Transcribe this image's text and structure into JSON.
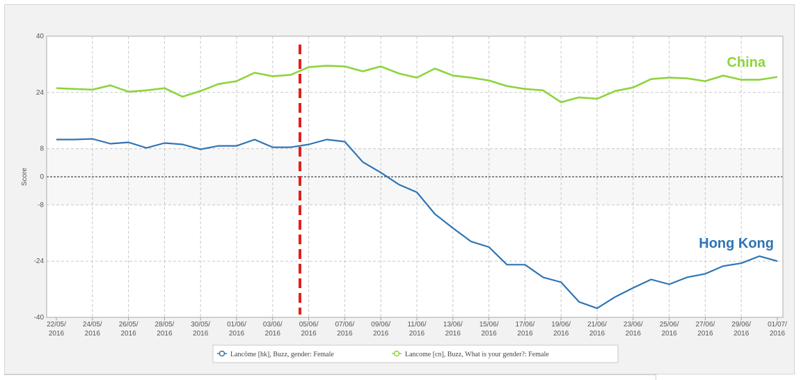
{
  "chart_data": {
    "type": "line",
    "ylabel": "Score",
    "xlabel": "",
    "ylim": [
      -40,
      40
    ],
    "yticks": [
      40,
      24,
      8,
      0,
      -8,
      -24,
      -40
    ],
    "grid": true,
    "legend_position": "bottom-center",
    "x": [
      "22/05/2016",
      "23/05/2016",
      "24/05/2016",
      "25/05/2016",
      "26/05/2016",
      "27/05/2016",
      "28/05/2016",
      "29/05/2016",
      "30/05/2016",
      "31/05/2016",
      "01/06/2016",
      "02/06/2016",
      "03/06/2016",
      "04/06/2016",
      "05/06/2016",
      "06/06/2016",
      "07/06/2016",
      "08/06/2016",
      "09/06/2016",
      "10/06/2016",
      "11/06/2016",
      "12/06/2016",
      "13/06/2016",
      "14/06/2016",
      "15/06/2016",
      "16/06/2016",
      "17/06/2016",
      "18/06/2016",
      "19/06/2016",
      "20/06/2016",
      "21/06/2016",
      "22/06/2016",
      "23/06/2016",
      "24/06/2016",
      "25/06/2016",
      "26/06/2016",
      "27/06/2016",
      "28/06/2016",
      "29/06/2016",
      "30/06/2016",
      "01/07/2016"
    ],
    "xtick_labels": [
      {
        "line1": "22/05/",
        "line2": "2016"
      },
      {
        "line1": "24/05/",
        "line2": "2016"
      },
      {
        "line1": "26/05/",
        "line2": "2016"
      },
      {
        "line1": "28/05/",
        "line2": "2016"
      },
      {
        "line1": "30/05/",
        "line2": "2016"
      },
      {
        "line1": "01/06/",
        "line2": "2016"
      },
      {
        "line1": "03/06/",
        "line2": "2016"
      },
      {
        "line1": "05/06/",
        "line2": "2016"
      },
      {
        "line1": "07/06/",
        "line2": "2016"
      },
      {
        "line1": "09/06/",
        "line2": "2016"
      },
      {
        "line1": "11/06/",
        "line2": "2016"
      },
      {
        "line1": "13/06/",
        "line2": "2016"
      },
      {
        "line1": "15/06/",
        "line2": "2016"
      },
      {
        "line1": "17/06/",
        "line2": "2016"
      },
      {
        "line1": "19/06/",
        "line2": "2016"
      },
      {
        "line1": "21/06/",
        "line2": "2016"
      },
      {
        "line1": "23/06/",
        "line2": "2016"
      },
      {
        "line1": "25/06/",
        "line2": "2016"
      },
      {
        "line1": "27/06/",
        "line2": "2016"
      },
      {
        "line1": "29/06/",
        "line2": "2016"
      },
      {
        "line1": "01/07/",
        "line2": "2016"
      }
    ],
    "series": [
      {
        "name": "Lancôme [hk], Buzz, gender: Female",
        "label": "Hong Kong",
        "color": "#2e74b5",
        "values": [
          10.6,
          10.6,
          10.8,
          9.4,
          9.8,
          8.2,
          9.6,
          9.2,
          7.8,
          8.8,
          8.8,
          10.6,
          8.4,
          8.4,
          9.2,
          10.6,
          10,
          4.2,
          1.2,
          -2.2,
          -4.4,
          -10.6,
          -14.6,
          -18.4,
          -20,
          -25,
          -25,
          -28.6,
          -30,
          -35.6,
          -37.4,
          -34.2,
          -31.6,
          -29.2,
          -30.6,
          -28.6,
          -27.6,
          -25.4,
          -24.6,
          -22.6,
          -24
        ],
        "marker": "circle"
      },
      {
        "name": "Lancome [cn], Buzz, What is your gender?: Female",
        "label": "China",
        "color": "#8cd43c",
        "values": [
          25.2,
          25,
          24.8,
          26,
          24.2,
          24.6,
          25.2,
          22.8,
          24.4,
          26.4,
          27.2,
          29.6,
          28.6,
          29,
          31.2,
          31.6,
          31.4,
          30,
          31.4,
          29.4,
          28.2,
          30.8,
          28.8,
          28.2,
          27.4,
          25.8,
          25,
          24.6,
          21.2,
          22.6,
          22.2,
          24.4,
          25.4,
          27.8,
          28.2,
          28,
          27.2,
          28.8,
          27.6,
          27.6,
          28.4
        ]
      }
    ],
    "annotations": [
      {
        "type": "vertical-dashed-line",
        "x": "04/06/2016",
        "color": "#e02020"
      },
      {
        "type": "reference-line",
        "y": 0,
        "style": "dotted",
        "color": "#444444"
      }
    ]
  }
}
